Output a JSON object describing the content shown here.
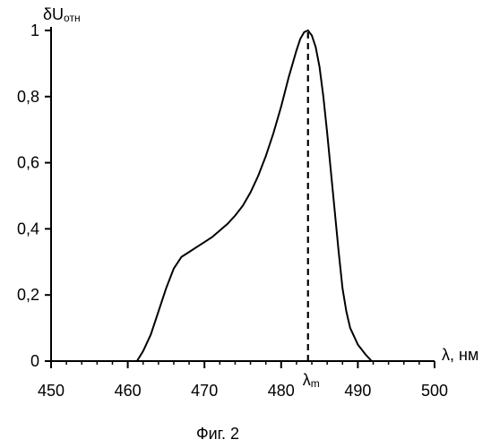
{
  "chart_data": {
    "type": "line",
    "title": "",
    "xlabel": "λ, нм",
    "ylabel": "δU",
    "ylabel_subscript": "отн",
    "xlim": [
      450,
      500
    ],
    "ylim": [
      0,
      1
    ],
    "grid": false,
    "x_ticks": [
      450,
      460,
      470,
      480,
      490,
      500
    ],
    "x_tick_labels": [
      "450",
      "460",
      "470",
      "480",
      "490",
      "500"
    ],
    "y_ticks": [
      0,
      0.2,
      0.4,
      0.6,
      0.8,
      1
    ],
    "y_tick_labels": [
      "0",
      "0,2",
      "0,4",
      "0,6",
      "0,8",
      "1"
    ],
    "series": [
      {
        "x": [
          461.2,
          462.0,
          463.0,
          464.0,
          465.0,
          466.0,
          467.0,
          468.0,
          469.0,
          470.0,
          471.0,
          472.0,
          473.0,
          474.0,
          475.0,
          476.0,
          477.0,
          478.0,
          479.0,
          480.0,
          481.0,
          482.0,
          482.5,
          483.0,
          483.5,
          484.0,
          484.5,
          485.0,
          485.5,
          486.0,
          486.5,
          487.0,
          487.5,
          488.0,
          488.5,
          489.0,
          490.0,
          491.0,
          491.8
        ],
        "y": [
          0.0,
          0.03,
          0.08,
          0.15,
          0.22,
          0.28,
          0.315,
          0.33,
          0.345,
          0.36,
          0.375,
          0.395,
          0.415,
          0.44,
          0.47,
          0.51,
          0.56,
          0.62,
          0.69,
          0.77,
          0.86,
          0.94,
          0.975,
          0.995,
          1.0,
          0.985,
          0.95,
          0.89,
          0.8,
          0.69,
          0.57,
          0.45,
          0.33,
          0.22,
          0.15,
          0.1,
          0.05,
          0.02,
          0.0
        ]
      }
    ],
    "annotations": [
      {
        "type": "vline",
        "x": 483.5,
        "y_from": 0,
        "y_to": 1,
        "style": "dashed",
        "label": "λ",
        "label_subscript": "m"
      }
    ]
  },
  "caption": "Фиг. 2"
}
